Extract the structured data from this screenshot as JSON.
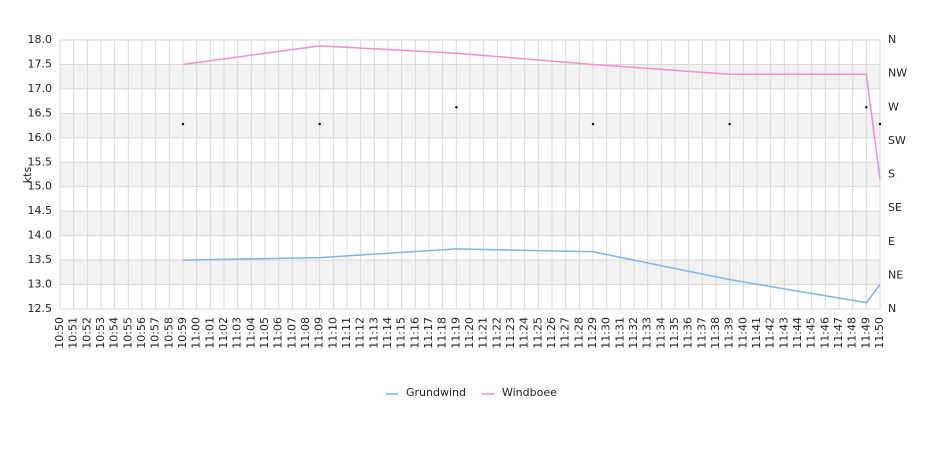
{
  "chart_data": {
    "type": "line",
    "y_label": "kts",
    "categories": [
      "10:50",
      "10:51",
      "10:52",
      "10:53",
      "10:54",
      "10:55",
      "10:56",
      "10:57",
      "10:58",
      "10:59",
      "11:00",
      "11:01",
      "11:02",
      "11:03",
      "11:04",
      "11:05",
      "11:06",
      "11:07",
      "11:08",
      "11:09",
      "11:10",
      "11:11",
      "11:12",
      "11:13",
      "11:14",
      "11:15",
      "11:16",
      "11:17",
      "11:18",
      "11:19",
      "11:20",
      "11:21",
      "11:22",
      "11:23",
      "11:24",
      "11:25",
      "11:26",
      "11:27",
      "11:28",
      "11:29",
      "11:30",
      "11:31",
      "11:32",
      "11:33",
      "11:34",
      "11:35",
      "11:36",
      "11:37",
      "11:38",
      "11:39",
      "11:40",
      "11:41",
      "11:42",
      "11:43",
      "11:44",
      "11:45",
      "11:46",
      "11:47",
      "11:48",
      "11:49",
      "11:50"
    ],
    "series": [
      {
        "name": "Grundwind",
        "color": "#7cb5ec",
        "x": [
          "10:59",
          "11:09",
          "11:19",
          "11:29",
          "11:39",
          "11:49",
          "11:50"
        ],
        "values": [
          13.5,
          13.55,
          13.73,
          13.67,
          13.1,
          12.63,
          13.0
        ]
      },
      {
        "name": "Windboee",
        "color": "#f28fc4",
        "x": [
          "10:59",
          "11:09",
          "11:19",
          "11:29",
          "11:39",
          "11:49",
          "11:50"
        ],
        "values": [
          17.5,
          17.88,
          17.73,
          17.5,
          17.3,
          17.3,
          15.15
        ]
      }
    ],
    "direction": {
      "axis": "y2",
      "color": "#000000",
      "x": [
        "10:59",
        "11:09",
        "11:19",
        "11:29",
        "11:39",
        "11:49",
        "11:50"
      ],
      "values": [
        247.5,
        247.5,
        270,
        247.5,
        247.5,
        270,
        247.5
      ]
    },
    "ylim": [
      12.5,
      18.0
    ],
    "yticks": [
      12.5,
      {
        "value": 13,
        "label": "13.0"
      },
      13.5,
      {
        "value": 14,
        "label": "14.0"
      },
      14.5,
      {
        "value": 15,
        "label": "15.0"
      },
      15.5,
      {
        "value": 16,
        "label": "16.0"
      },
      16.5,
      {
        "value": 17,
        "label": "17.0"
      },
      17.5,
      {
        "value": 18,
        "label": "18.0"
      }
    ],
    "y2lim": [
      0,
      360
    ],
    "y2ticks": [
      {
        "value": 0,
        "label": "N"
      },
      {
        "value": 45,
        "label": "NE"
      },
      {
        "value": 90,
        "label": "E"
      },
      {
        "value": 135,
        "label": "SE"
      },
      {
        "value": 180,
        "label": "S"
      },
      {
        "value": 225,
        "label": "SW"
      },
      {
        "value": 270,
        "label": "W"
      },
      {
        "value": 315,
        "label": "NW"
      },
      {
        "value": 360,
        "label": "N"
      }
    ],
    "grid": true,
    "legend": "bottom"
  }
}
